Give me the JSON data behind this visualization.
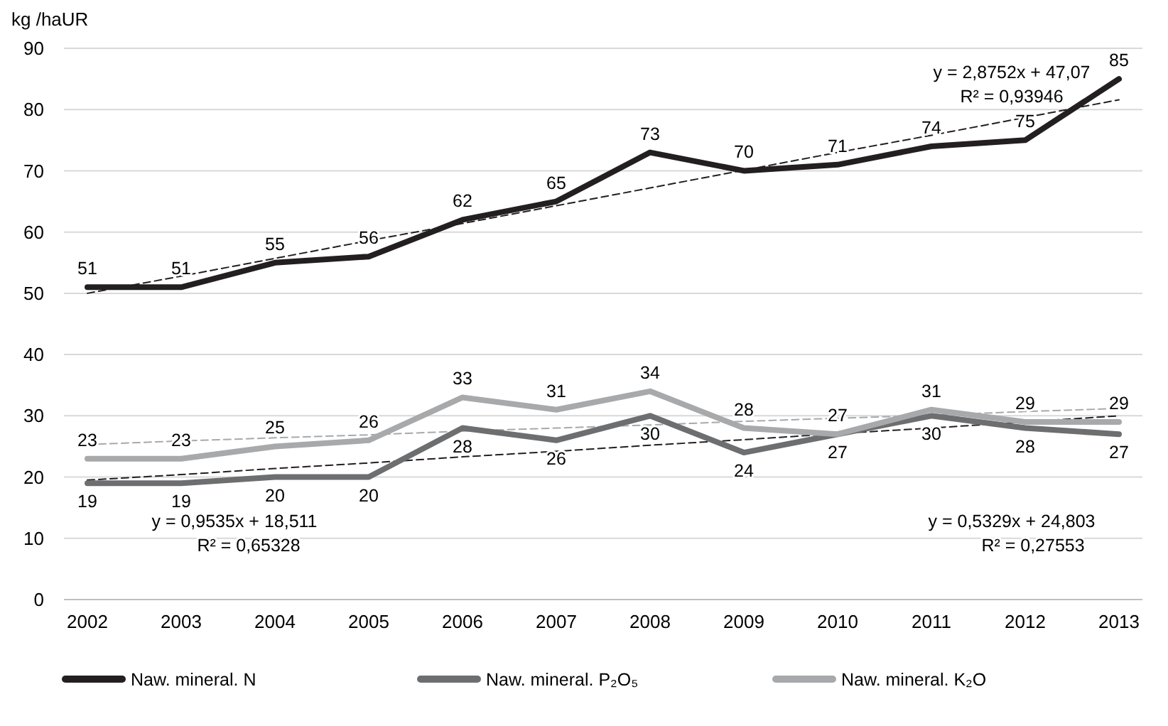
{
  "chart_data": {
    "type": "line",
    "ylabel": "kg /haUR",
    "categories": [
      "2002",
      "2003",
      "2004",
      "2005",
      "2006",
      "2007",
      "2008",
      "2009",
      "2010",
      "2011",
      "2012",
      "2013"
    ],
    "ylim": [
      0,
      90
    ],
    "yticks": [
      0,
      10,
      20,
      30,
      40,
      50,
      60,
      70,
      80,
      90
    ],
    "grid": "y",
    "legend": "bottom",
    "line_style": "solid",
    "marker": "none",
    "series": [
      {
        "name": "Naw. mineral. N",
        "color": "#231f20",
        "values": [
          51,
          51,
          55,
          56,
          62,
          65,
          73,
          70,
          71,
          74,
          75,
          85
        ],
        "value_labels": [
          "51",
          "51",
          "55",
          "56",
          "62",
          "65",
          "73",
          "70",
          "71",
          "74",
          "75",
          "85"
        ]
      },
      {
        "name": "Naw. mineral.  P₂O₅",
        "color": "#6d6e70",
        "values": [
          19,
          19,
          20,
          20,
          28,
          26,
          30,
          24,
          27,
          30,
          28,
          27
        ],
        "value_labels": [
          "19",
          "19",
          "20",
          "20",
          "28",
          "26",
          "30",
          "24",
          "27",
          "30",
          "28",
          "27"
        ]
      },
      {
        "name": "Naw. mineral. K₂O",
        "color": "#a7a9ab",
        "values": [
          23,
          23,
          25,
          26,
          33,
          31,
          34,
          28,
          27,
          31,
          29,
          29
        ],
        "value_labels": [
          "23",
          "23",
          "25",
          "26",
          "33",
          "31",
          "34",
          "28",
          "27",
          "31",
          "29",
          "29"
        ]
      },
      {
        "type": "line",
        "line_style": "dashed",
        "color": "#231f20",
        "values": [
          50.0,
          52.8,
          55.7,
          58.6,
          61.4,
          64.3,
          67.2,
          70.1,
          73.0,
          75.8,
          78.7,
          81.6
        ]
      },
      {
        "type": "line",
        "line_style": "dashed",
        "color": "#231f20",
        "values": [
          19.5,
          20.4,
          21.4,
          22.3,
          23.3,
          24.2,
          25.2,
          26.1,
          27.1,
          28.0,
          29.0,
          30.0
        ]
      },
      {
        "type": "line",
        "line_style": "dashed",
        "color": "#a7a9ab",
        "values": [
          25.3,
          25.9,
          26.4,
          26.9,
          27.5,
          28.0,
          28.5,
          29.1,
          29.6,
          30.1,
          30.7,
          31.2
        ]
      }
    ],
    "annotations": [
      "y = 2,8752x + 47,07",
      "R² = 0,93946",
      "y = 0,9535x + 18,511",
      "R² = 0,65328",
      "y = 0,5329x + 24,803",
      "R² = 0,27553"
    ]
  }
}
